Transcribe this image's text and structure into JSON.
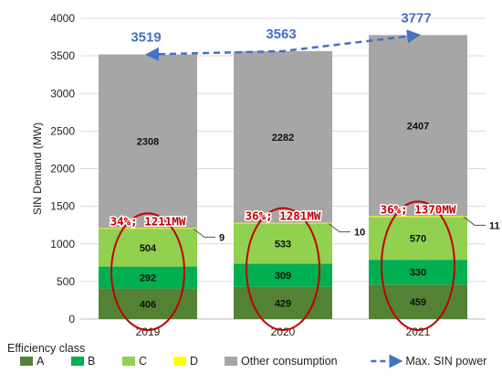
{
  "chart_data": {
    "type": "bar",
    "stacked": true,
    "title": "",
    "xlabel": "",
    "ylabel": "SIN Demand (MW)",
    "ylim": [
      0,
      4000
    ],
    "yticks": [
      0,
      500,
      1000,
      1500,
      2000,
      2500,
      3000,
      3500,
      4000
    ],
    "categories": [
      "2019",
      "2020",
      "2021"
    ],
    "legend_title": "Efficiency class",
    "legend_position": "bottom",
    "grid": true,
    "series": [
      {
        "name": "A",
        "values": [
          406,
          429,
          459
        ],
        "color": "#548235"
      },
      {
        "name": "B",
        "values": [
          292,
          309,
          330
        ],
        "color": "#00B050"
      },
      {
        "name": "C",
        "values": [
          504,
          533,
          570
        ],
        "color": "#92D050"
      },
      {
        "name": "D",
        "values": [
          9,
          10,
          11
        ],
        "color": "#FFFF00"
      },
      {
        "name": "Other consumption",
        "values": [
          2308,
          2282,
          2407
        ],
        "color": "#A6A6A6"
      }
    ],
    "line_series": {
      "name": "Max. SIN power",
      "values": [
        3519,
        3563,
        3777
      ],
      "color": "#4472C4",
      "style": "dashed"
    },
    "annotations": [
      "34%; 1211MW",
      "36%; 1281MW",
      "36%; 1370MW"
    ],
    "annotation_color": "#C00000"
  }
}
